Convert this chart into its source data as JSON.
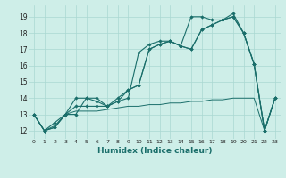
{
  "xlabel": "Humidex (Indice chaleur)",
  "bg_color": "#ceeee8",
  "grid_color": "#aad8d2",
  "line_color": "#1a6e6a",
  "xlim": [
    -0.5,
    23.5
  ],
  "ylim": [
    11.5,
    19.7
  ],
  "xticks": [
    0,
    1,
    2,
    3,
    4,
    5,
    6,
    7,
    8,
    9,
    10,
    11,
    12,
    13,
    14,
    15,
    16,
    17,
    18,
    19,
    20,
    21,
    22,
    23
  ],
  "yticks": [
    12,
    13,
    14,
    15,
    16,
    17,
    18,
    19
  ],
  "s1": [
    13,
    12,
    12.2,
    13,
    13,
    14,
    14,
    13.5,
    13.8,
    14.0,
    16.8,
    17.3,
    17.5,
    17.5,
    17.2,
    19.0,
    19.0,
    18.8,
    18.8,
    19.2,
    18.0,
    16.1,
    12.0,
    14.0
  ],
  "s2": [
    13,
    12,
    12.2,
    13,
    14,
    14.0,
    13.8,
    13.5,
    14.0,
    14.5,
    14.8,
    17.0,
    17.3,
    17.5,
    17.2,
    17.0,
    18.2,
    18.5,
    18.8,
    19.0,
    18.0,
    16.1,
    12.0,
    14.0
  ],
  "s3": [
    13,
    12,
    12.5,
    13,
    13.5,
    13.5,
    13.5,
    13.5,
    13.8,
    14.5,
    14.8,
    17.0,
    17.3,
    17.5,
    17.2,
    17.0,
    18.2,
    18.5,
    18.8,
    19.0,
    18.0,
    16.1,
    12.0,
    14.0
  ],
  "s4": [
    13,
    12,
    12.3,
    13,
    13.2,
    13.2,
    13.2,
    13.3,
    13.4,
    13.5,
    13.5,
    13.6,
    13.6,
    13.7,
    13.7,
    13.8,
    13.8,
    13.9,
    13.9,
    14.0,
    14.0,
    14.0,
    12.0,
    14.0
  ]
}
